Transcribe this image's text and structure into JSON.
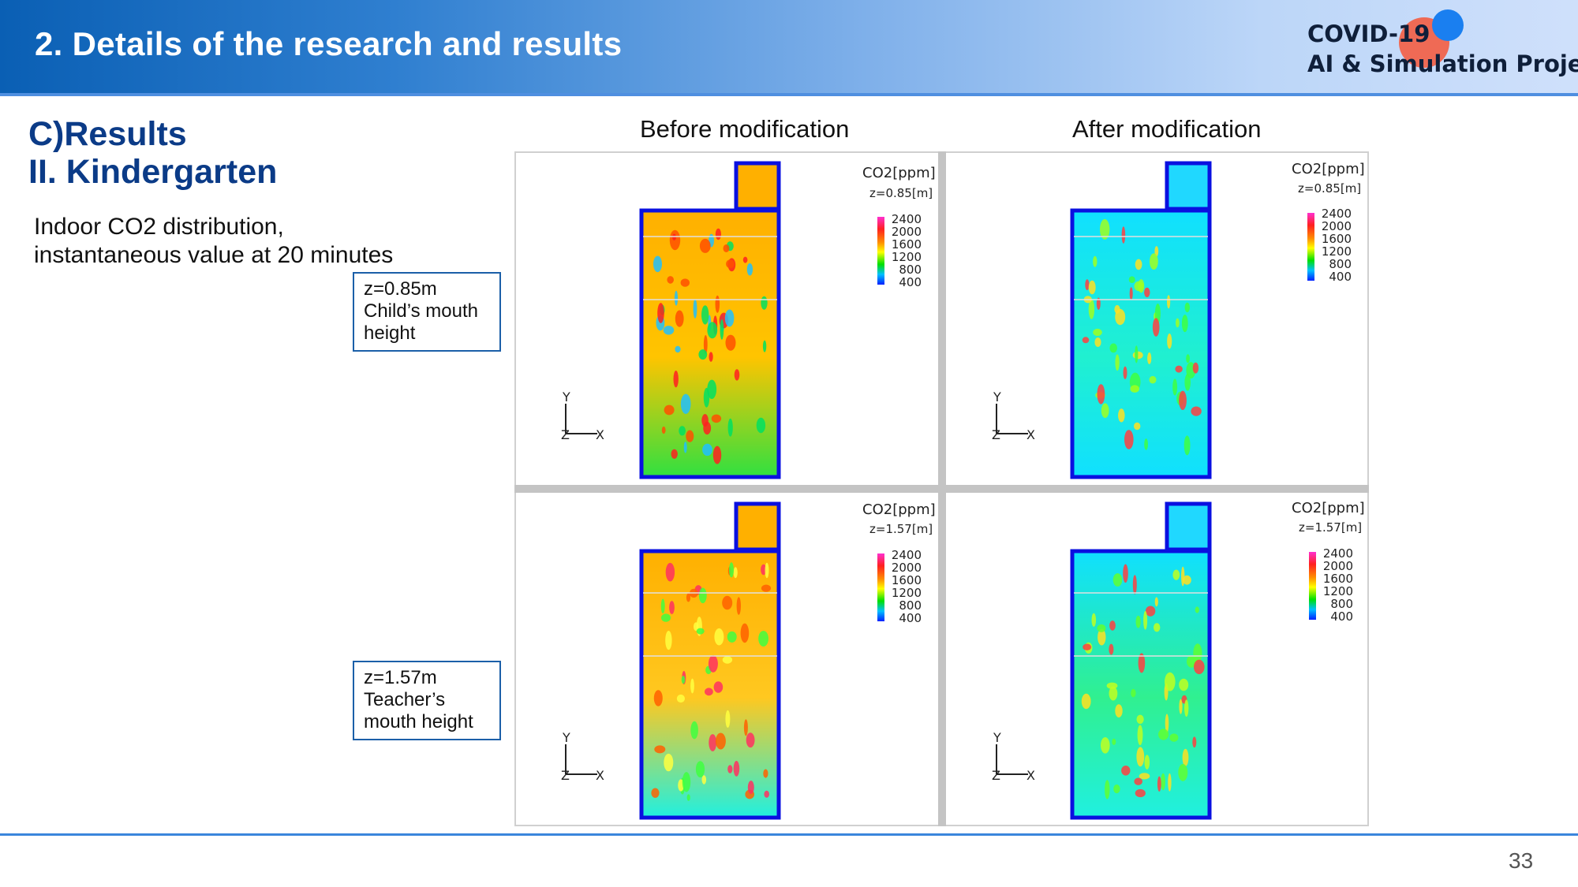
{
  "header": {
    "title": "2. Details of the research and results",
    "logo_line1": "COVID-19",
    "logo_line2": "AI & Simulation Project"
  },
  "section": {
    "line1": "C)Results",
    "line2": "II. Kindergarten"
  },
  "description": {
    "line1": "Indoor CO2 distribution,",
    "line2": "instantaneous value at 20 minutes"
  },
  "height_labels": [
    {
      "line1": "z=0.85m",
      "line2": "Child’s mouth",
      "line3": "height"
    },
    {
      "line1": "z=1.57m",
      "line2": "Teacher’s",
      "line3": "mouth height"
    }
  ],
  "columns": {
    "before": "Before modification",
    "after": "After modification"
  },
  "legend": {
    "title": "CO2[ppm]",
    "z_top": "z=0.85[m]",
    "z_bottom": "z=1.57[m]",
    "ticks": [
      "2400",
      "2000",
      "1600",
      "1200",
      "800",
      "400"
    ]
  },
  "axes": {
    "y": "Y",
    "z": "Z",
    "x": "X"
  },
  "colors": {
    "accent": "#0b3b87",
    "box_border": "#1b5fa8",
    "wall": "#0a10e0"
  },
  "page_number": "33"
}
